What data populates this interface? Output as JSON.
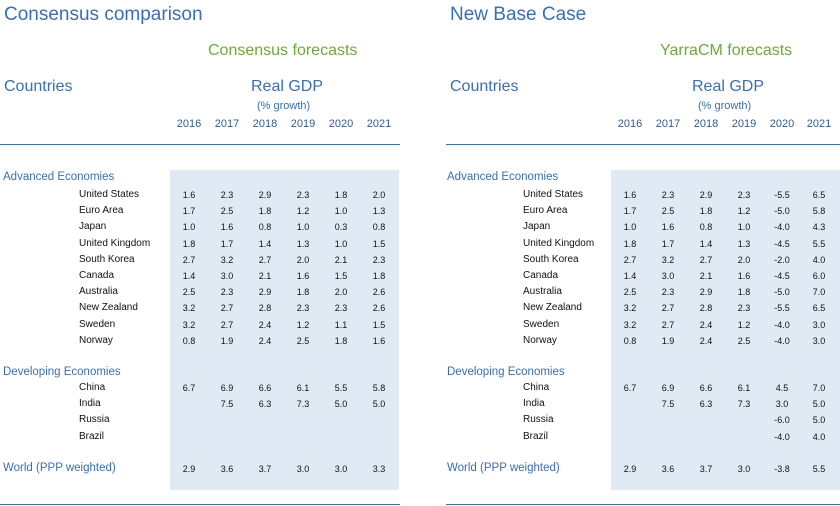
{
  "left": {
    "title": "Consensus comparison",
    "subtitle": "Consensus forecasts",
    "countries_label": "Countries",
    "metric": "Real GDP",
    "metric_unit": "(% growth)",
    "years": [
      "2016",
      "2017",
      "2018",
      "2019",
      "2020",
      "2021"
    ],
    "sections": [
      {
        "name": "Advanced Economies",
        "rows": [
          {
            "country": "United States",
            "values": [
              "1.6",
              "2.3",
              "2.9",
              "2.3",
              "1.8",
              "2.0"
            ]
          },
          {
            "country": "Euro Area",
            "values": [
              "1.7",
              "2.5",
              "1.8",
              "1.2",
              "1.0",
              "1.3"
            ]
          },
          {
            "country": "Japan",
            "values": [
              "1.0",
              "1.6",
              "0.8",
              "1.0",
              "0.3",
              "0.8"
            ]
          },
          {
            "country": "United Kingdom",
            "values": [
              "1.8",
              "1.7",
              "1.4",
              "1.3",
              "1.0",
              "1.5"
            ]
          },
          {
            "country": "South Korea",
            "values": [
              "2.7",
              "3.2",
              "2.7",
              "2.0",
              "2.1",
              "2.3"
            ]
          },
          {
            "country": "Canada",
            "values": [
              "1.4",
              "3.0",
              "2.1",
              "1.6",
              "1.5",
              "1.8"
            ]
          },
          {
            "country": "Australia",
            "values": [
              "2.5",
              "2.3",
              "2.9",
              "1.8",
              "2.0",
              "2.6"
            ]
          },
          {
            "country": "New Zealand",
            "values": [
              "3.2",
              "2.7",
              "2.8",
              "2.3",
              "2.3",
              "2.6"
            ]
          },
          {
            "country": "Sweden",
            "values": [
              "3.2",
              "2.7",
              "2.4",
              "1.2",
              "1.1",
              "1.5"
            ]
          },
          {
            "country": "Norway",
            "values": [
              "0.8",
              "1.9",
              "2.4",
              "2.5",
              "1.8",
              "1.6"
            ]
          }
        ]
      },
      {
        "name": "Developing Economies",
        "rows": [
          {
            "country": "China",
            "values": [
              "6.7",
              "6.9",
              "6.6",
              "6.1",
              "5.5",
              "5.8"
            ]
          },
          {
            "country": "India",
            "values": [
              "",
              "7.5",
              "6.3",
              "7.3",
              "5.0",
              "5.0"
            ]
          },
          {
            "country": "Russia",
            "values": [
              "",
              "",
              "",
              "",
              "",
              ""
            ]
          },
          {
            "country": "Brazil",
            "values": [
              "",
              "",
              "",
              "",
              "",
              ""
            ]
          }
        ]
      }
    ],
    "world": {
      "label": "World (PPP weighted)",
      "values": [
        "2.9",
        "3.6",
        "3.7",
        "3.0",
        "3.0",
        "3.3"
      ]
    }
  },
  "right": {
    "title": "New Base Case",
    "subtitle": "YarraCM forecasts",
    "countries_label": "Countries",
    "metric": "Real GDP",
    "metric_unit": "(% growth)",
    "years": [
      "2016",
      "2017",
      "2018",
      "2019",
      "2020",
      "2021"
    ],
    "sections": [
      {
        "name": "Advanced Economies",
        "rows": [
          {
            "country": "United States",
            "values": [
              "1.6",
              "2.3",
              "2.9",
              "2.3",
              "-5.5",
              "6.5"
            ]
          },
          {
            "country": "Euro Area",
            "values": [
              "1.7",
              "2.5",
              "1.8",
              "1.2",
              "-5.0",
              "5.8"
            ]
          },
          {
            "country": "Japan",
            "values": [
              "1.0",
              "1.6",
              "0.8",
              "1.0",
              "-4.0",
              "4.3"
            ]
          },
          {
            "country": "United Kingdom",
            "values": [
              "1.8",
              "1.7",
              "1.4",
              "1.3",
              "-4.5",
              "5.5"
            ]
          },
          {
            "country": "South Korea",
            "values": [
              "2.7",
              "3.2",
              "2.7",
              "2.0",
              "-2.0",
              "4.0"
            ]
          },
          {
            "country": "Canada",
            "values": [
              "1.4",
              "3.0",
              "2.1",
              "1.6",
              "-4.5",
              "6.0"
            ]
          },
          {
            "country": "Australia",
            "values": [
              "2.5",
              "2.3",
              "2.9",
              "1.8",
              "-5.0",
              "7.0"
            ]
          },
          {
            "country": "New Zealand",
            "values": [
              "3.2",
              "2.7",
              "2.8",
              "2.3",
              "-5.5",
              "6.5"
            ]
          },
          {
            "country": "Sweden",
            "values": [
              "3.2",
              "2.7",
              "2.4",
              "1.2",
              "-4.0",
              "3.0"
            ]
          },
          {
            "country": "Norway",
            "values": [
              "0.8",
              "1.9",
              "2.4",
              "2.5",
              "-4.0",
              "3.0"
            ]
          }
        ]
      },
      {
        "name": "Developing Economies",
        "rows": [
          {
            "country": "China",
            "values": [
              "6.7",
              "6.9",
              "6.6",
              "6.1",
              "4.5",
              "7.0"
            ]
          },
          {
            "country": "India",
            "values": [
              "",
              "7.5",
              "6.3",
              "7.3",
              "3.0",
              "5.0"
            ]
          },
          {
            "country": "Russia",
            "values": [
              "",
              "",
              "",
              "",
              "-6.0",
              "5.0"
            ]
          },
          {
            "country": "Brazil",
            "values": [
              "",
              "",
              "",
              "",
              "-4.0",
              "4.0"
            ]
          }
        ]
      }
    ],
    "world": {
      "label": "World (PPP weighted)",
      "values": [
        "2.9",
        "3.6",
        "3.7",
        "3.0",
        "-3.8",
        "5.5"
      ]
    }
  }
}
